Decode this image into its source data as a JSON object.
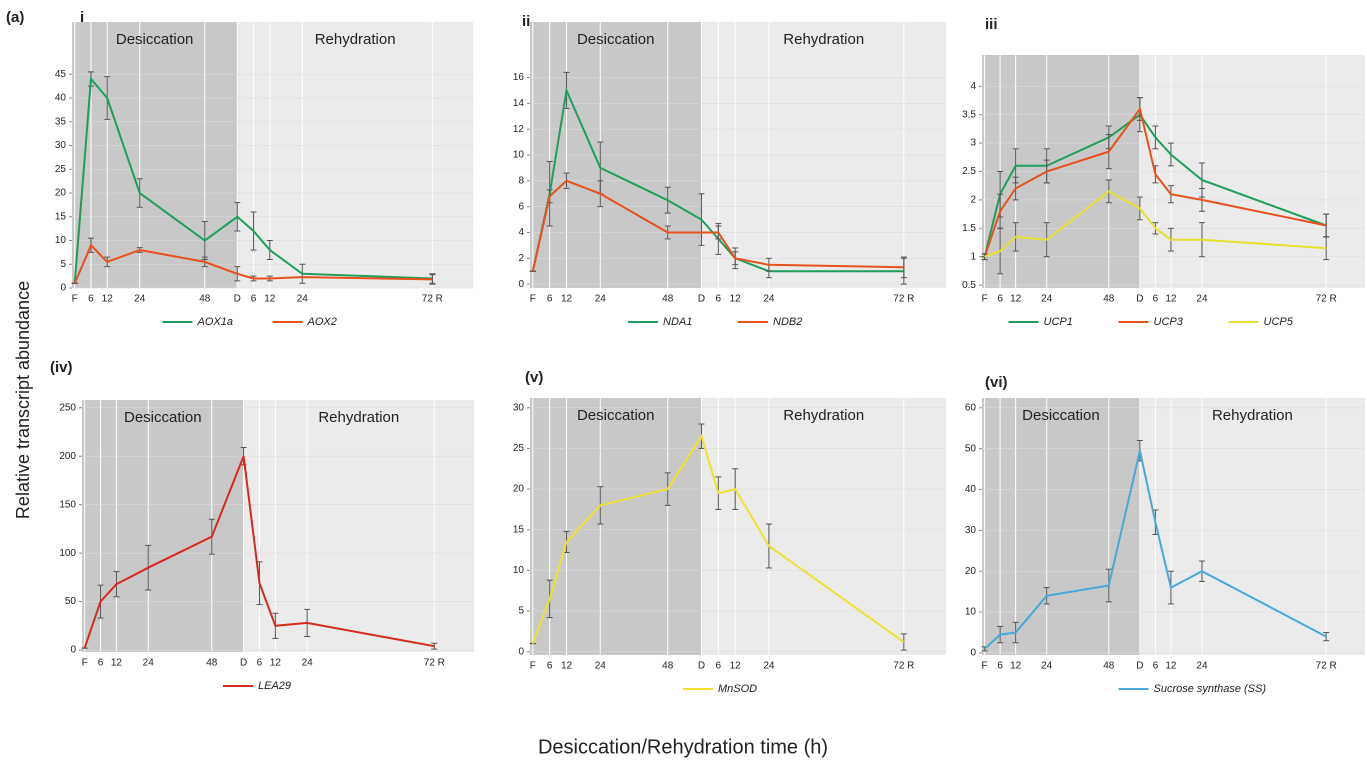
{
  "figure_label": "(a)",
  "y_label": "Relative transcript abundance",
  "x_label": "Desiccation/Rehydration time (h)",
  "chart_data": [
    {
      "type": "line",
      "panel_label": "i",
      "annotations": [
        "Desiccation",
        "Rehydration"
      ],
      "x": [
        0,
        6,
        12,
        24,
        48,
        60,
        66,
        72,
        84,
        132
      ],
      "xticks": [
        {
          "value": 0,
          "label": "F"
        },
        6,
        12,
        24,
        48,
        {
          "value": 60,
          "label": "D"
        },
        {
          "value": 66,
          "label": "6"
        },
        {
          "value": 72,
          "label": "12"
        },
        {
          "value": 84,
          "label": "24"
        },
        {
          "value": 132,
          "label": "72 R"
        }
      ],
      "xlim": [
        -1,
        147
      ],
      "ylim": [
        0,
        56
      ],
      "yticks": [
        0,
        5,
        10,
        15,
        20,
        25,
        30,
        35,
        40,
        45
      ],
      "grid": true,
      "series": [
        {
          "name": "AOX1a",
          "color": "#1e9e5a",
          "values": [
            1,
            44,
            40,
            20,
            10,
            15,
            12,
            8,
            3,
            2
          ],
          "errors": [
            0,
            1.5,
            4.5,
            3,
            4,
            3,
            4,
            2,
            2,
            1
          ]
        },
        {
          "name": "AOX2",
          "color": "#e8501e",
          "values": [
            1,
            9,
            5.5,
            8,
            5.5,
            3,
            2,
            2,
            2.3,
            1.8
          ],
          "errors": [
            0,
            1.5,
            1,
            0.5,
            1,
            1.5,
            0.5,
            0.5,
            0,
            1
          ]
        }
      ]
    },
    {
      "type": "line",
      "panel_label": "ii",
      "annotations": [
        "Desiccation",
        "Rehydration"
      ],
      "x": [
        0,
        6,
        12,
        24,
        48,
        60,
        66,
        72,
        84,
        132
      ],
      "xticks": [
        {
          "value": 0,
          "label": "F"
        },
        6,
        12,
        24,
        48,
        {
          "value": 60,
          "label": "D"
        },
        {
          "value": 66,
          "label": "6"
        },
        {
          "value": 72,
          "label": "12"
        },
        {
          "value": 84,
          "label": "24"
        },
        {
          "value": 132,
          "label": "72 R"
        }
      ],
      "xlim": [
        -1,
        147
      ],
      "ylim": [
        -0.3,
        20.3
      ],
      "yticks": [
        0,
        2,
        4,
        6,
        8,
        10,
        12,
        14,
        16
      ],
      "grid": true,
      "series": [
        {
          "name": "NDA1",
          "color": "#1e9e5a",
          "values": [
            1,
            7,
            15,
            9,
            6.5,
            5,
            3.5,
            2,
            1,
            1
          ],
          "errors": [
            0,
            2.5,
            1.4,
            2,
            1,
            2,
            1.2,
            0.8,
            0.5,
            1
          ]
        },
        {
          "name": "NDB2",
          "color": "#e8501e",
          "values": [
            1,
            6.8,
            8,
            7,
            4,
            4,
            4,
            2,
            1.5,
            1.3
          ],
          "errors": [
            0,
            0.5,
            0.6,
            1,
            0.5,
            0,
            0.5,
            0.5,
            0.5,
            0.8
          ]
        }
      ]
    },
    {
      "type": "line",
      "panel_label": "iii",
      "annotations": [],
      "x": [
        0,
        6,
        12,
        24,
        48,
        60,
        66,
        72,
        84,
        132
      ],
      "xticks": [
        {
          "value": 0,
          "label": "F"
        },
        6,
        12,
        24,
        48,
        {
          "value": 60,
          "label": "D"
        },
        {
          "value": 66,
          "label": "6"
        },
        {
          "value": 72,
          "label": "12"
        },
        {
          "value": 84,
          "label": "24"
        },
        {
          "value": 132,
          "label": "72 R"
        }
      ],
      "xlim": [
        -1,
        147
      ],
      "ylim": [
        0.45,
        4.55
      ],
      "yticks": [
        0.5,
        1,
        1.5,
        2,
        2.5,
        3,
        3.5,
        4
      ],
      "grid": true,
      "series": [
        {
          "name": "UCP1",
          "color": "#1e9e5a",
          "values": [
            1,
            2.1,
            2.6,
            2.6,
            3.1,
            3.5,
            3.1,
            2.8,
            2.35,
            1.55
          ],
          "errors": [
            0,
            0.4,
            0.3,
            0.3,
            0.2,
            0.3,
            0.2,
            0.2,
            0.3,
            0.2
          ]
        },
        {
          "name": "UCP3",
          "color": "#e8501e",
          "values": [
            1,
            1.8,
            2.2,
            2.5,
            2.85,
            3.6,
            2.45,
            2.1,
            2,
            1.55
          ],
          "errors": [
            0.05,
            0.3,
            0.2,
            0.2,
            0.3,
            0.2,
            0.15,
            0.15,
            0.2,
            0.2
          ]
        },
        {
          "name": "UCP5",
          "color": "#e8e030",
          "values": [
            1,
            1.1,
            1.35,
            1.3,
            2.15,
            1.85,
            1.5,
            1.3,
            1.3,
            1.15
          ],
          "errors": [
            0.05,
            0.4,
            0.25,
            0.3,
            0.2,
            0.2,
            0.1,
            0.2,
            0.3,
            0.2
          ]
        }
      ]
    },
    {
      "type": "line",
      "panel_label": "(iv)",
      "annotations": [
        "Desiccation",
        "Rehydration"
      ],
      "x": [
        0,
        6,
        12,
        24,
        48,
        60,
        66,
        72,
        84,
        132
      ],
      "xticks": [
        {
          "value": 0,
          "label": "F"
        },
        6,
        12,
        24,
        48,
        {
          "value": 60,
          "label": "D"
        },
        {
          "value": 66,
          "label": "6"
        },
        {
          "value": 72,
          "label": "12"
        },
        {
          "value": 84,
          "label": "24"
        },
        {
          "value": 132,
          "label": "72 R"
        }
      ],
      "xlim": [
        -1,
        147
      ],
      "ylim": [
        -2,
        258
      ],
      "yticks": [
        0,
        50,
        100,
        150,
        200,
        250
      ],
      "grid": true,
      "series": [
        {
          "name": "LEA29",
          "color": "#d42a20",
          "values": [
            2,
            50,
            68,
            85,
            117,
            200,
            69,
            25,
            28,
            4
          ],
          "errors": [
            0,
            17,
            13,
            23,
            18,
            9,
            22,
            13,
            14,
            3
          ]
        }
      ]
    },
    {
      "type": "line",
      "panel_label": "(v)",
      "annotations": [
        "Desiccation",
        "Rehydration"
      ],
      "x": [
        0,
        6,
        12,
        24,
        48,
        60,
        66,
        72,
        84,
        132
      ],
      "xticks": [
        {
          "value": 0,
          "label": "F"
        },
        6,
        12,
        24,
        48,
        {
          "value": 60,
          "label": "D"
        },
        {
          "value": 66,
          "label": "6"
        },
        {
          "value": 72,
          "label": "12"
        },
        {
          "value": 84,
          "label": "24"
        },
        {
          "value": 132,
          "label": "72 R"
        }
      ],
      "xlim": [
        -1,
        147
      ],
      "ylim": [
        -0.4,
        31.2
      ],
      "yticks": [
        0,
        5,
        10,
        15,
        20,
        25,
        30
      ],
      "grid": true,
      "series": [
        {
          "name": "MnSOD",
          "color": "#f0e030",
          "values": [
            1,
            6.5,
            13.5,
            18,
            20,
            26.5,
            19.5,
            20,
            13,
            1.2
          ],
          "errors": [
            0,
            2.3,
            1.3,
            2.3,
            2,
            1.5,
            2,
            2.5,
            2.7,
            1
          ]
        }
      ]
    },
    {
      "type": "line",
      "panel_label": "(vi)",
      "annotations": [
        "Desiccation",
        "Rehydration"
      ],
      "x": [
        0,
        6,
        12,
        24,
        48,
        60,
        66,
        72,
        84,
        132
      ],
      "xticks": [
        {
          "value": 0,
          "label": "F"
        },
        6,
        12,
        24,
        48,
        {
          "value": 60,
          "label": "D"
        },
        {
          "value": 66,
          "label": "6"
        },
        {
          "value": 72,
          "label": "12"
        },
        {
          "value": 84,
          "label": "24"
        },
        {
          "value": 132,
          "label": "72 R"
        }
      ],
      "xlim": [
        -1,
        147
      ],
      "ylim": [
        -0.5,
        62.4
      ],
      "yticks": [
        0,
        10,
        20,
        30,
        40,
        50,
        60
      ],
      "grid": true,
      "series": [
        {
          "name": "Sucrose synthase (SS)",
          "color": "#4aa8d8",
          "values": [
            1,
            4.5,
            5,
            14,
            16.5,
            49.5,
            32,
            16,
            20,
            4
          ],
          "errors": [
            0.5,
            2,
            2.5,
            2,
            4,
            2.5,
            3,
            4,
            2.5,
            1
          ]
        }
      ]
    }
  ]
}
